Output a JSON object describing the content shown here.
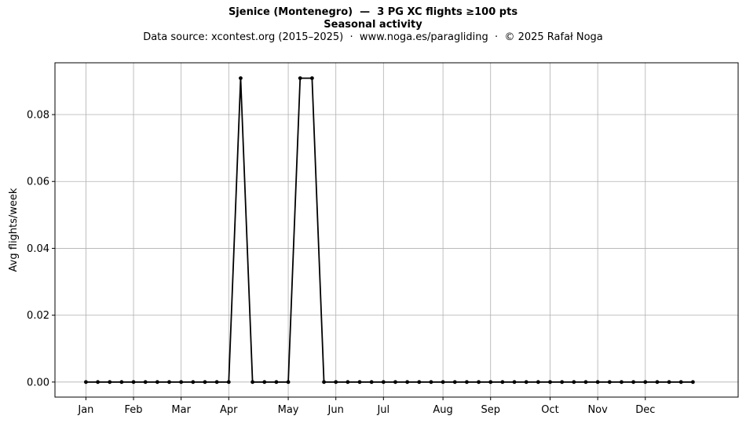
{
  "chart_data": {
    "type": "line",
    "title": "Sjenice (Montenegro)  —  3 PG XC flights ≥100 pts",
    "title_line2": "Seasonal activity",
    "subtitle": "Data source: xcontest.org (2015–2025)  ·  www.noga.es/paragliding  ·  © 2025 Rafał Noga",
    "ylabel": "Avg flights/week",
    "xlabel": "",
    "ylim": [
      -0.0045,
      0.0955
    ],
    "yticks": [
      0.0,
      0.02,
      0.04,
      0.06,
      0.08
    ],
    "ytick_labels": [
      "0.00",
      "0.02",
      "0.04",
      "0.06",
      "0.08"
    ],
    "month_ticks": [
      {
        "label": "Jan",
        "week": 1
      },
      {
        "label": "Feb",
        "week": 5
      },
      {
        "label": "Mar",
        "week": 9
      },
      {
        "label": "Apr",
        "week": 13
      },
      {
        "label": "May",
        "week": 18
      },
      {
        "label": "Jun",
        "week": 22
      },
      {
        "label": "Jul",
        "week": 26
      },
      {
        "label": "Aug",
        "week": 31
      },
      {
        "label": "Sep",
        "week": 35
      },
      {
        "label": "Oct",
        "week": 40
      },
      {
        "label": "Nov",
        "week": 44
      },
      {
        "label": "Dec",
        "week": 48
      }
    ],
    "xlim": [
      -1.6,
      55.8
    ],
    "grid": true,
    "color": "#000000",
    "series": [
      {
        "x": [
          1,
          2,
          3,
          4,
          5,
          6,
          7,
          8,
          9,
          10,
          11,
          12,
          13,
          14,
          15,
          16,
          17,
          18,
          19,
          20,
          21,
          22,
          23,
          24,
          25,
          26,
          27,
          28,
          29,
          30,
          31,
          32,
          33,
          34,
          35,
          36,
          37,
          38,
          39,
          40,
          41,
          42,
          43,
          44,
          45,
          46,
          47,
          48,
          49,
          50,
          51,
          52
        ],
        "values": [
          0,
          0,
          0,
          0,
          0,
          0,
          0,
          0,
          0,
          0,
          0,
          0,
          0,
          0.0909,
          0,
          0,
          0,
          0,
          0.0909,
          0.0909,
          0,
          0,
          0,
          0,
          0,
          0,
          0,
          0,
          0,
          0,
          0,
          0,
          0,
          0,
          0,
          0,
          0,
          0,
          0,
          0,
          0,
          0,
          0,
          0,
          0,
          0,
          0,
          0,
          0,
          0,
          0,
          0
        ]
      }
    ]
  }
}
